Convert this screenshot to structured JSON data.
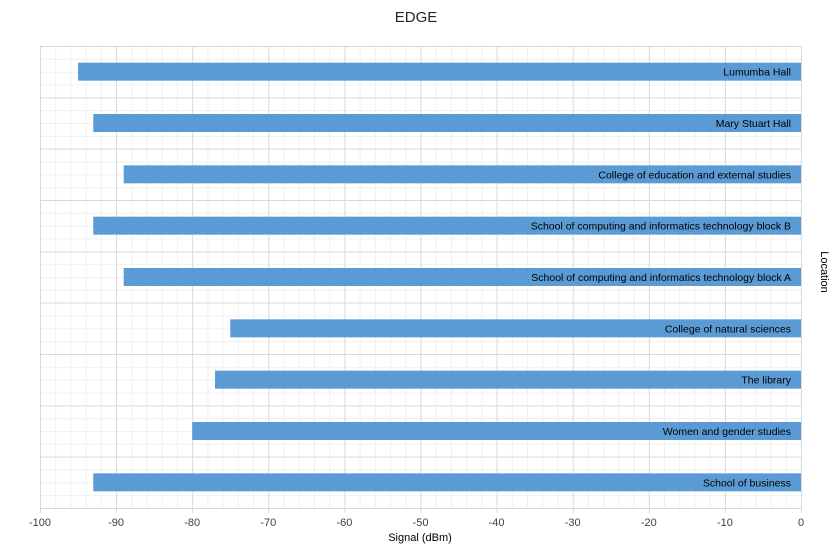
{
  "chart_data": {
    "type": "bar",
    "orientation": "horizontal",
    "title": "EDGE",
    "xlabel": "Signal (dBm)",
    "ylabel": "Location",
    "xlim": [
      -100,
      0
    ],
    "xticks": [
      "-100",
      "-90",
      "-80",
      "-70",
      "-60",
      "-50",
      "-40",
      "-30",
      "-20",
      "-10",
      "0"
    ],
    "grid": true,
    "bar_color": "#5b9bd5",
    "categories": [
      "Lumumba Hall",
      "Mary Stuart Hall",
      "College of education and external studies",
      "School of computing and informatics technology block B",
      "School of computing and informatics technology block A",
      "College of natural sciences",
      "The library",
      "Women and gender studies",
      "School of business"
    ],
    "values": [
      -95,
      -93,
      -89,
      -93,
      -89,
      -75,
      -77,
      -80,
      -93
    ]
  }
}
